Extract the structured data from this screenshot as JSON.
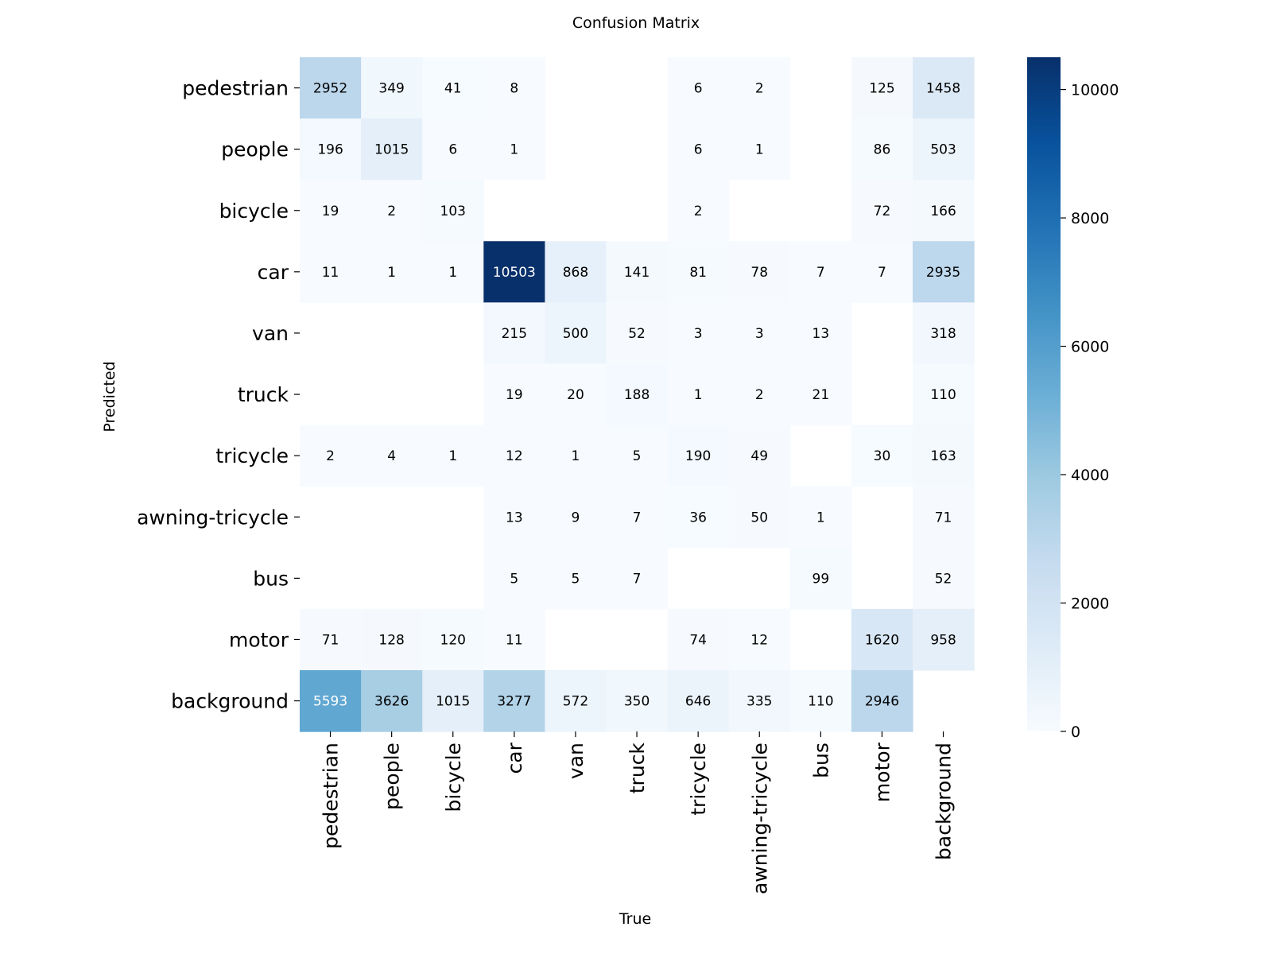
{
  "chart_data": {
    "type": "heatmap",
    "title": "Confusion Matrix",
    "xlabel": "True",
    "ylabel": "Predicted",
    "x_categories": [
      "pedestrian",
      "people",
      "bicycle",
      "car",
      "van",
      "truck",
      "tricycle",
      "awning-tricycle",
      "bus",
      "motor",
      "background"
    ],
    "y_categories": [
      "pedestrian",
      "people",
      "bicycle",
      "car",
      "van",
      "truck",
      "tricycle",
      "awning-tricycle",
      "bus",
      "motor",
      "background"
    ],
    "values": [
      [
        2952,
        349,
        41,
        8,
        null,
        null,
        6,
        2,
        null,
        125,
        1458
      ],
      [
        196,
        1015,
        6,
        1,
        null,
        null,
        6,
        1,
        null,
        86,
        503
      ],
      [
        19,
        2,
        103,
        null,
        null,
        null,
        2,
        null,
        null,
        72,
        166
      ],
      [
        11,
        1,
        1,
        10503,
        868,
        141,
        81,
        78,
        7,
        7,
        2935
      ],
      [
        null,
        null,
        null,
        215,
        500,
        52,
        3,
        3,
        13,
        null,
        318
      ],
      [
        null,
        null,
        null,
        19,
        20,
        188,
        1,
        2,
        21,
        null,
        110
      ],
      [
        2,
        4,
        1,
        12,
        1,
        5,
        190,
        49,
        null,
        30,
        163
      ],
      [
        null,
        null,
        null,
        13,
        9,
        7,
        36,
        50,
        1,
        null,
        71
      ],
      [
        null,
        null,
        null,
        5,
        5,
        7,
        null,
        null,
        99,
        null,
        52
      ],
      [
        71,
        128,
        120,
        11,
        null,
        null,
        74,
        12,
        null,
        1620,
        958
      ],
      [
        5593,
        3626,
        1015,
        3277,
        572,
        350,
        646,
        335,
        110,
        2946,
        null
      ]
    ],
    "colorbar": {
      "min": 0,
      "max": 10503,
      "ticks": [
        0,
        2000,
        4000,
        6000,
        8000,
        10000
      ],
      "colormap": "Blues"
    },
    "grid": false,
    "legend": "colorbar-right"
  }
}
